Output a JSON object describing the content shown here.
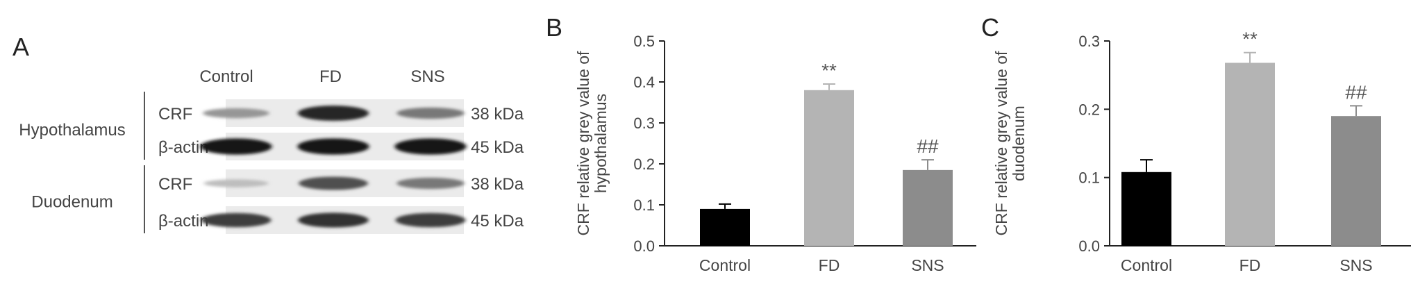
{
  "panel_a": {
    "letter": "A",
    "lanes": [
      "Control",
      "FD",
      "SNS"
    ],
    "groups": [
      {
        "tissue": "Hypothalamus",
        "blots": [
          {
            "protein": "CRF",
            "size": "38 kDa",
            "intensity": [
              0.3,
              0.85,
              0.45
            ]
          },
          {
            "protein": "β-actin",
            "size": "45 kDa",
            "intensity": [
              0.95,
              0.95,
              0.95
            ]
          }
        ]
      },
      {
        "tissue": "Duodenum",
        "blots": [
          {
            "protein": "CRF",
            "size": "38 kDa",
            "intensity": [
              0.1,
              0.65,
              0.45
            ]
          },
          {
            "protein": "β-actin",
            "size": "45 kDa",
            "intensity": [
              0.75,
              0.8,
              0.75
            ]
          }
        ]
      }
    ]
  },
  "chart_data": [
    {
      "type": "bar",
      "panel": "B",
      "categories": [
        "Control",
        "FD",
        "SNS"
      ],
      "values": [
        0.09,
        0.38,
        0.185
      ],
      "errors": [
        0.012,
        0.015,
        0.025
      ],
      "annotations": [
        "",
        "**",
        "##"
      ],
      "colors": [
        "#000000",
        "#b4b4b4",
        "#8c8c8c"
      ],
      "ylabel": "CRF relative grey value of\nhypothalamus",
      "ylim": [
        0,
        0.5
      ],
      "yticks": [
        "0.0",
        "0.1",
        "0.2",
        "0.3",
        "0.4",
        "0.5"
      ]
    },
    {
      "type": "bar",
      "panel": "C",
      "categories": [
        "Control",
        "FD",
        "SNS"
      ],
      "values": [
        0.108,
        0.268,
        0.19
      ],
      "errors": [
        0.018,
        0.015,
        0.015
      ],
      "annotations": [
        "",
        "**",
        "##"
      ],
      "colors": [
        "#000000",
        "#b4b4b4",
        "#8c8c8c"
      ],
      "ylabel": "CRF relative grey value of\nduodenum",
      "ylim": [
        0,
        0.3
      ],
      "yticks": [
        "0.0",
        "0.1",
        "0.2",
        "0.3"
      ]
    }
  ]
}
